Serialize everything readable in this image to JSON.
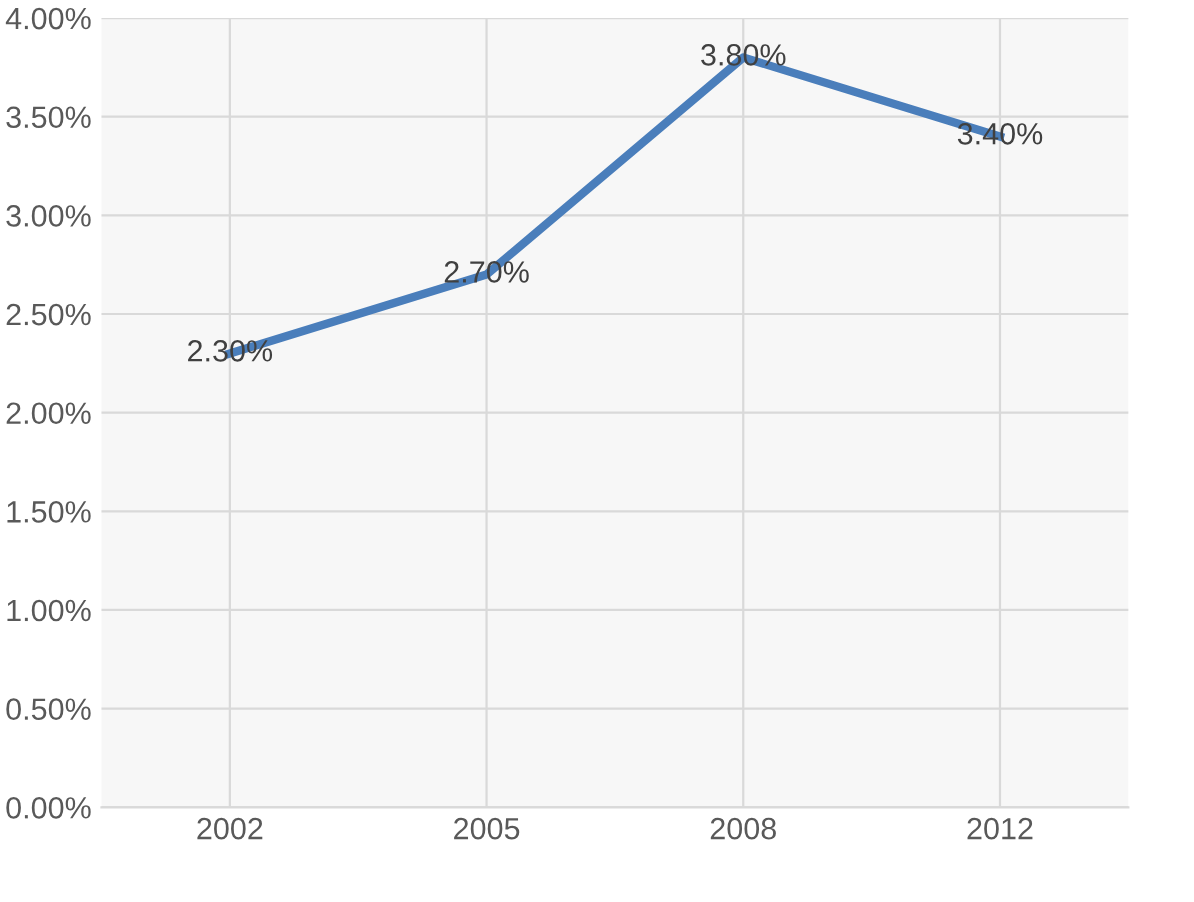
{
  "chart_data": {
    "type": "line",
    "categories": [
      "2002",
      "2005",
      "2008",
      "2012"
    ],
    "series": [
      {
        "color": "#4a7ebb",
        "values": [
          2.3,
          2.7,
          3.8,
          3.4
        ],
        "value_labels": [
          "2.30%",
          "2.70%",
          "3.80%",
          "3.40%"
        ]
      }
    ],
    "ylim": [
      0,
      4
    ],
    "yticks": [
      {
        "value": 0,
        "label": "0.00%"
      },
      {
        "value": 0.5,
        "label": "0.50%"
      },
      {
        "value": 1,
        "label": "1.00%"
      },
      {
        "value": 1.5,
        "label": "1.50%"
      },
      {
        "value": 2,
        "label": "2.00%"
      },
      {
        "value": 2.5,
        "label": "2.50%"
      },
      {
        "value": 3,
        "label": "3.00%"
      },
      {
        "value": 3.5,
        "label": "3.50%"
      },
      {
        "value": 4,
        "label": "4.00%"
      }
    ],
    "grid": true,
    "legend": false,
    "marker": "none",
    "line_style": "solid"
  }
}
